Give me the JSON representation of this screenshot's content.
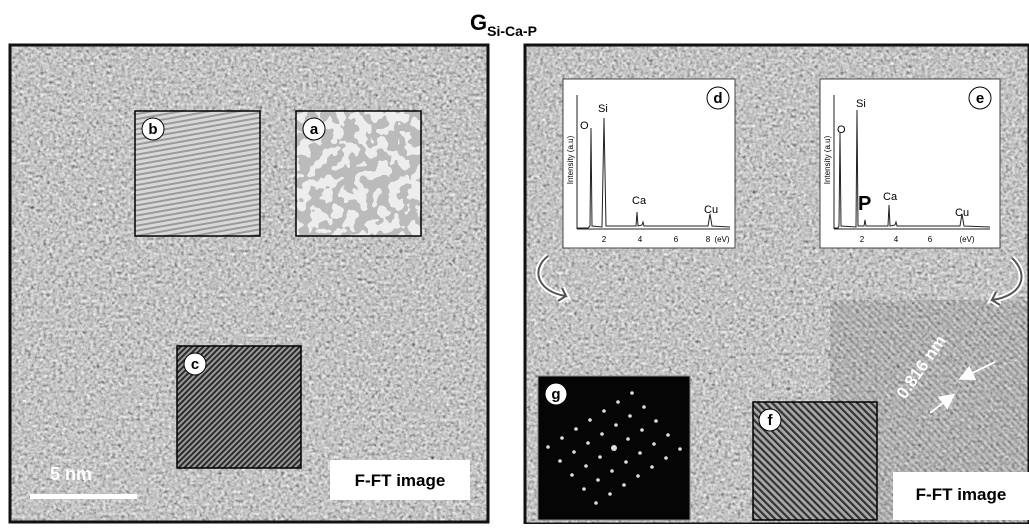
{
  "title": {
    "main": "G",
    "sub": "Si-Ca-P"
  },
  "left_panel": {
    "insets": [
      {
        "label": "b"
      },
      {
        "label": "a"
      },
      {
        "label": "c"
      }
    ],
    "scale_bar": "5 nm",
    "caption": "F-FT image"
  },
  "right_panel": {
    "spectra": [
      {
        "label": "d",
        "y_label": "Intensity (a.u)",
        "peaks": [
          "O",
          "Si",
          "Ca",
          "Cu"
        ],
        "x_ticks": [
          "2",
          "4",
          "6",
          "8",
          "(eV)"
        ]
      },
      {
        "label": "e",
        "y_label": "Intensity (a.u)",
        "peaks": [
          "O",
          "Si",
          "P",
          "Ca",
          "Cu"
        ],
        "x_ticks": [
          "2",
          "4",
          "6",
          "(eV)"
        ]
      }
    ],
    "insets": [
      {
        "label": "g"
      },
      {
        "label": "f"
      }
    ],
    "spacing": "0.816 nm",
    "caption": "F-FT image"
  }
}
